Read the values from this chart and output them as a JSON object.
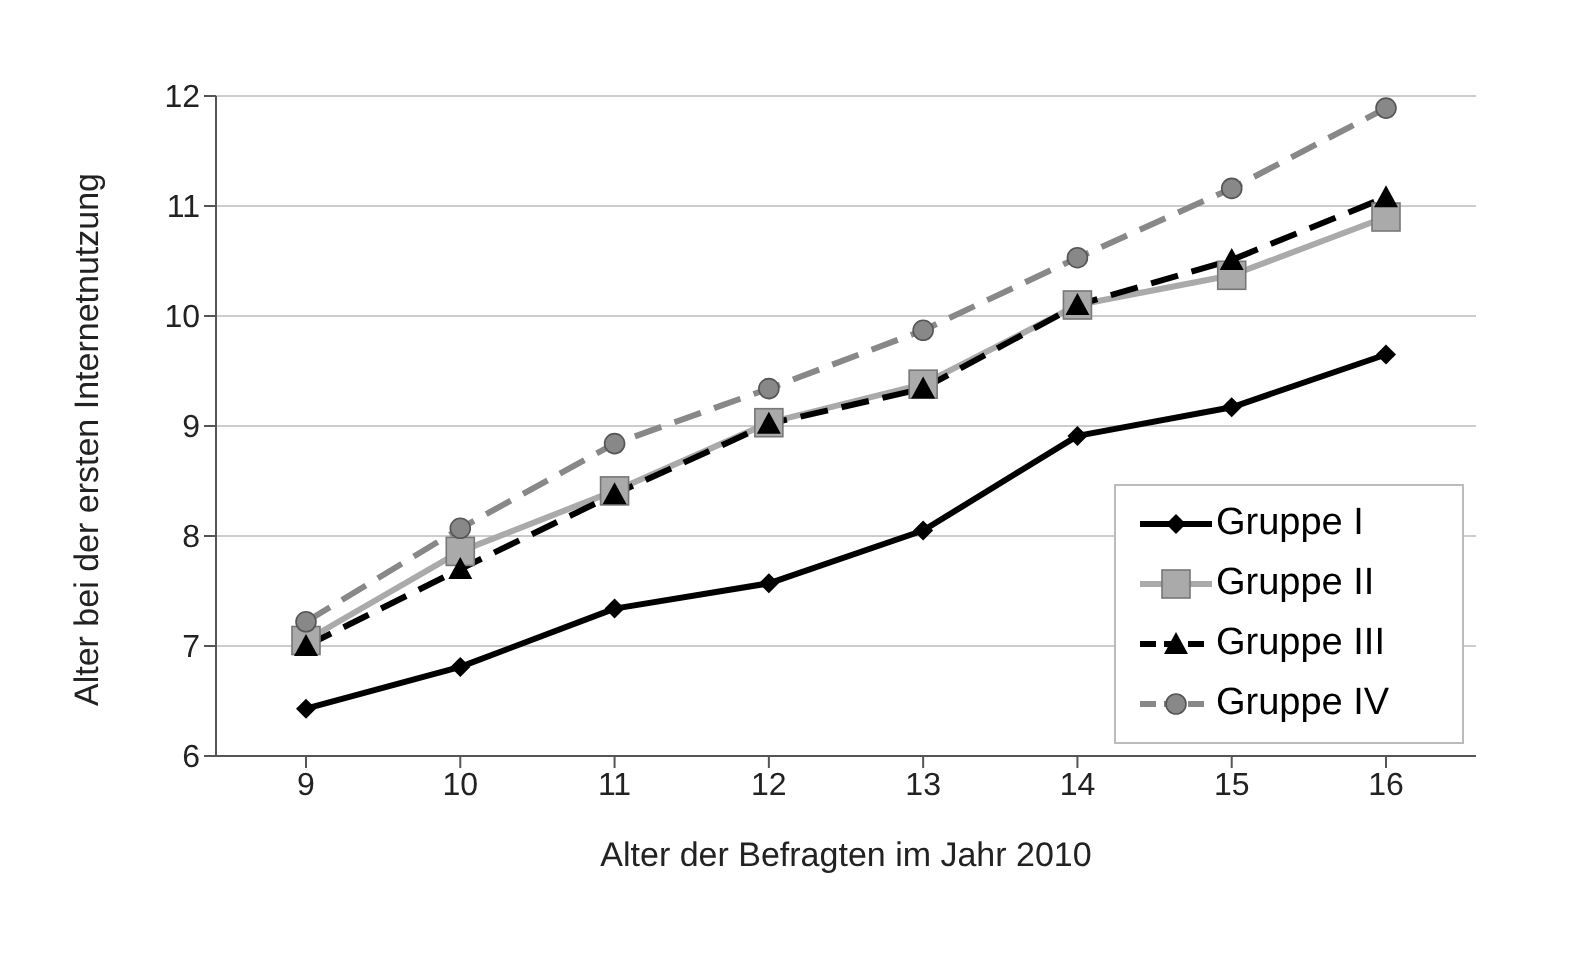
{
  "chart_data": {
    "type": "line",
    "xlabel": "Alter der Befragten im Jahr 2010",
    "ylabel": "Alter bei der ersten Internetnutzung",
    "categories": [
      "9",
      "10",
      "11",
      "12",
      "13",
      "14",
      "15",
      "16"
    ],
    "series": [
      {
        "name": "Gruppe I",
        "color": "#000000",
        "marker": "diamond",
        "line_style": "solid",
        "values": [
          6.43,
          6.81,
          7.34,
          7.57,
          8.05,
          8.91,
          9.17,
          9.65
        ]
      },
      {
        "name": "Gruppe II",
        "color": "#aaaaaa",
        "marker": "square",
        "line_style": "solid",
        "values": [
          7.05,
          7.86,
          8.41,
          9.03,
          9.38,
          10.1,
          10.37,
          10.9
        ]
      },
      {
        "name": "Gruppe III",
        "color": "#000000",
        "marker": "triangle",
        "line_style": "dashed",
        "values": [
          7.0,
          7.7,
          8.38,
          9.02,
          9.34,
          10.1,
          10.51,
          11.08
        ]
      },
      {
        "name": "Gruppe IV",
        "color": "#888888",
        "marker": "circle",
        "line_style": "dashed",
        "values": [
          7.22,
          8.07,
          8.84,
          9.34,
          9.87,
          10.53,
          11.16,
          11.89
        ]
      }
    ],
    "ylim": [
      6,
      12
    ],
    "yticks": [
      6,
      7,
      8,
      9,
      10,
      11,
      12
    ],
    "grid": "y",
    "legend": "bottom right"
  }
}
